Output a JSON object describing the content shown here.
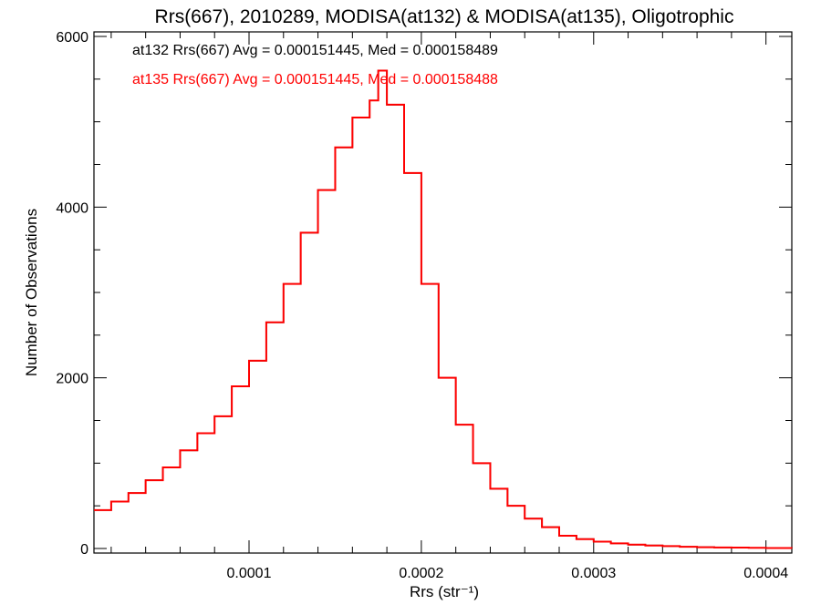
{
  "chart_data": {
    "type": "line",
    "title": "Rrs(667), 2010289, MODISA(at132) & MODISA(at135), Oligotrophic",
    "xlabel": "Rrs (str⁻¹)",
    "ylabel": "Number of Observations",
    "xlim": [
      1e-05,
      0.000415
    ],
    "ylim": [
      0,
      6000
    ],
    "x_ticks": [
      {
        "value": 0.0001,
        "label": "0.0001"
      },
      {
        "value": 0.0002,
        "label": "0.0002"
      },
      {
        "value": 0.0003,
        "label": "0.0003"
      },
      {
        "value": 0.0004,
        "label": "0.0004"
      }
    ],
    "y_ticks": [
      {
        "value": 0,
        "label": "0"
      },
      {
        "value": 2000,
        "label": "2000"
      },
      {
        "value": 4000,
        "label": "4000"
      },
      {
        "value": 6000,
        "label": "6000"
      }
    ],
    "grid": false,
    "step": "histogram",
    "annotations": [
      {
        "text": "at132 Rrs(667) Avg = 0.000151445, Med = 0.000158489",
        "color": "#000000"
      },
      {
        "text": "at135 Rrs(667) Avg = 0.000151445, Med = 0.000158488",
        "color": "#ff0000"
      }
    ],
    "series": [
      {
        "color": "#000000",
        "x": [
          1e-05,
          2e-05,
          3e-05,
          4e-05,
          5e-05,
          6e-05,
          7e-05,
          8e-05,
          9e-05,
          0.0001,
          0.00011,
          0.00012,
          0.00013,
          0.00014,
          0.00015,
          0.00016,
          0.00017,
          0.000175,
          0.00018,
          0.00019,
          0.0002,
          0.00021,
          0.00022,
          0.00023,
          0.00024,
          0.00025,
          0.00026,
          0.00027,
          0.00028,
          0.00029,
          0.0003,
          0.00031,
          0.00032,
          0.00033,
          0.00034,
          0.00035,
          0.00036,
          0.00037,
          0.00038,
          0.00039,
          0.0004,
          0.000415
        ],
        "y": [
          450,
          550,
          650,
          800,
          950,
          1150,
          1350,
          1550,
          1900,
          2200,
          2650,
          3100,
          3700,
          4200,
          4700,
          5050,
          5250,
          5600,
          5200,
          4400,
          3100,
          2000,
          1450,
          1000,
          700,
          500,
          350,
          250,
          150,
          110,
          80,
          60,
          45,
          35,
          28,
          20,
          15,
          12,
          10,
          8,
          6,
          5
        ]
      },
      {
        "color": "#ff0000",
        "x": [
          1e-05,
          2e-05,
          3e-05,
          4e-05,
          5e-05,
          6e-05,
          7e-05,
          8e-05,
          9e-05,
          0.0001,
          0.00011,
          0.00012,
          0.00013,
          0.00014,
          0.00015,
          0.00016,
          0.00017,
          0.000175,
          0.00018,
          0.00019,
          0.0002,
          0.00021,
          0.00022,
          0.00023,
          0.00024,
          0.00025,
          0.00026,
          0.00027,
          0.00028,
          0.00029,
          0.0003,
          0.00031,
          0.00032,
          0.00033,
          0.00034,
          0.00035,
          0.00036,
          0.00037,
          0.00038,
          0.00039,
          0.0004,
          0.000415
        ],
        "y": [
          450,
          550,
          650,
          800,
          950,
          1150,
          1350,
          1550,
          1900,
          2200,
          2650,
          3100,
          3700,
          4200,
          4700,
          5050,
          5250,
          5600,
          5200,
          4400,
          3100,
          2000,
          1450,
          1000,
          700,
          500,
          350,
          250,
          150,
          110,
          80,
          60,
          45,
          35,
          28,
          20,
          15,
          12,
          10,
          8,
          6,
          5
        ]
      }
    ]
  }
}
